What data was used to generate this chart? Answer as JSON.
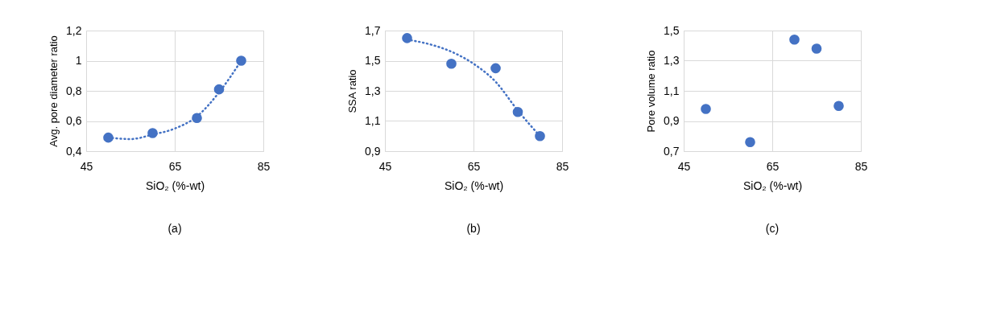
{
  "chart_data": [
    {
      "type": "scatter",
      "title": "(a)",
      "xlabel": "SiO₂ (%-wt)",
      "ylabel": "Avg. pore diameter ratio",
      "x": [
        50,
        60,
        70,
        75,
        80
      ],
      "grid": true,
      "xlim": [
        45,
        85
      ],
      "xticks": [
        45,
        65,
        85
      ],
      "ylim": [
        0.4,
        1.2
      ],
      "yticks": [
        {
          "value": 0.4,
          "label": "0,4"
        },
        {
          "value": 0.6,
          "label": "0,6"
        },
        {
          "value": 0.8,
          "label": "0,8"
        },
        1,
        {
          "value": 1.2,
          "label": "1,2"
        }
      ],
      "series": [
        {
          "color": "#4472c4",
          "marker": "circle",
          "values": [
            0.49,
            0.52,
            0.62,
            0.81,
            1.0
          ]
        },
        {
          "type": "line",
          "line_style": "dotted",
          "color": "#4472c4",
          "x": [
            50,
            55,
            60,
            65,
            70,
            75,
            80
          ],
          "values": [
            0.49,
            0.48,
            0.51,
            0.55,
            0.63,
            0.79,
            1.0
          ]
        }
      ]
    },
    {
      "type": "scatter",
      "title": "(b)",
      "xlabel": "SiO₂ (%-wt)",
      "ylabel": "SSA ratio",
      "x": [
        50,
        60,
        70,
        75,
        80
      ],
      "grid": true,
      "xlim": [
        45,
        85
      ],
      "xticks": [
        45,
        65,
        85
      ],
      "ylim": [
        0.9,
        1.7
      ],
      "yticks": [
        {
          "value": 0.9,
          "label": "0,9"
        },
        {
          "value": 1.1,
          "label": "1,1"
        },
        {
          "value": 1.3,
          "label": "1,3"
        },
        {
          "value": 1.5,
          "label": "1,5"
        },
        {
          "value": 1.7,
          "label": "1,7"
        }
      ],
      "series": [
        {
          "color": "#4472c4",
          "marker": "circle",
          "values": [
            1.65,
            1.48,
            1.45,
            1.16,
            1.0
          ]
        },
        {
          "type": "line",
          "line_style": "dotted",
          "color": "#4472c4",
          "x": [
            50,
            55,
            60,
            65,
            70,
            75,
            80
          ],
          "values": [
            1.64,
            1.61,
            1.56,
            1.48,
            1.36,
            1.17,
            1.0
          ]
        }
      ]
    },
    {
      "type": "scatter",
      "title": "(c)",
      "xlabel": "SiO₂ (%-wt)",
      "ylabel": "Pore volume ratio",
      "x": [
        50,
        60,
        70,
        75,
        80
      ],
      "grid": true,
      "marker": "circle",
      "xlim": [
        45,
        85
      ],
      "xticks": [
        45,
        65,
        85
      ],
      "ylim": [
        0.7,
        1.5
      ],
      "yticks": [
        {
          "value": 0.7,
          "label": "0,7"
        },
        {
          "value": 0.9,
          "label": "0,9"
        },
        {
          "value": 1.1,
          "label": "1,1"
        },
        {
          "value": 1.3,
          "label": "1,3"
        },
        {
          "value": 1.5,
          "label": "1,5"
        }
      ],
      "series": [
        {
          "color": "#4472c4",
          "values": [
            0.98,
            0.76,
            1.44,
            1.38,
            1.0
          ]
        }
      ]
    }
  ]
}
